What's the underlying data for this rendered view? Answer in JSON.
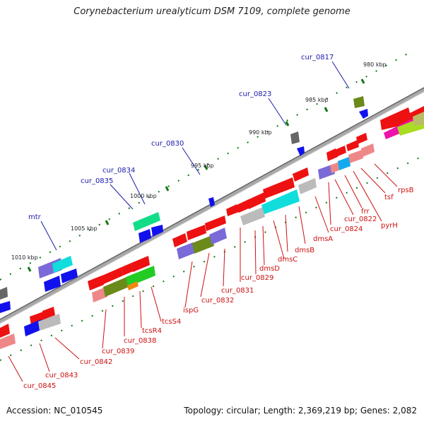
{
  "title": "Corynebacterium urealyticum DSM 7109, complete genome",
  "footer": {
    "accession": "Accession: NC_010545",
    "topology": "Topology: circular; Length: 2,369,219 bp; Genes: 2,082"
  },
  "scale_labels": [
    "980 kbp",
    "985 kbp",
    "990 kbp",
    "995 kbp",
    "1000 kbp",
    "1005 kbp",
    "1010 kbp"
  ],
  "gene_labels_top": [
    "cur_0817",
    "cur_0823",
    "cur_0830",
    "cur_0834",
    "cur_0835",
    "mtr"
  ],
  "gene_labels_bottom": [
    "rpsB",
    "tsf",
    "pyrH",
    "frr",
    "cur_0822",
    "cur_0824",
    "dmsA",
    "dmsB",
    "dmsC",
    "dmsD",
    "cur_0829",
    "cur_0831",
    "cur_0832",
    "ispG",
    "tcsS4",
    "tcsR4",
    "cur_0838",
    "cur_0839",
    "cur_0842",
    "cur_0843",
    "cur_0845"
  ],
  "colors": {
    "forward_cds": "#ee1111",
    "reverse_cds": "#1111ee",
    "backbone": "#999999",
    "tick": "#117711",
    "label_top": "#1a1aa8",
    "label_bottom": "#cc1111"
  }
}
